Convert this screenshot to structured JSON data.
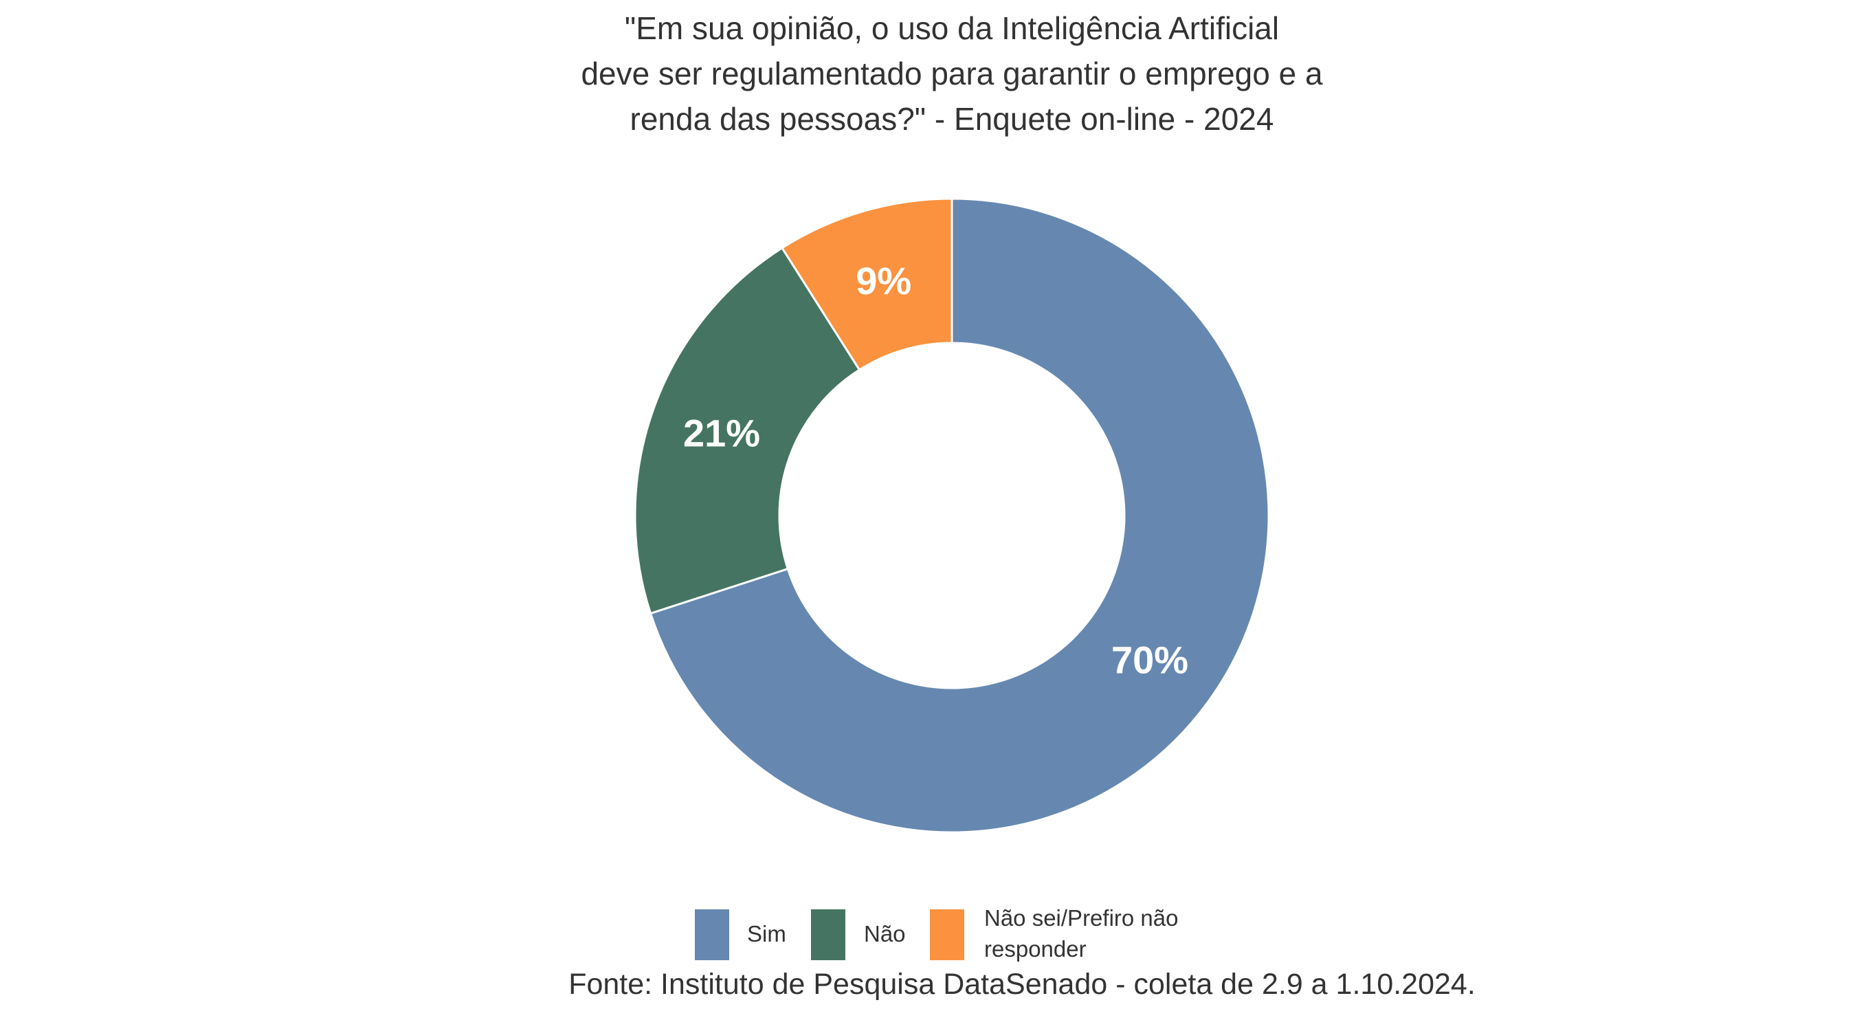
{
  "chart_data": {
    "type": "pie",
    "subtype": "donut",
    "title_lines": [
      "\"Em sua opinião, o uso da Inteligência Artificial",
      "deve ser regulamentado para garantir o emprego e a",
      "renda das pessoas?\" - Enquete on-line - 2024"
    ],
    "categories": [
      "Sim",
      "Não",
      "Não sei/Prefiro não responder"
    ],
    "legend_lines": [
      [
        "Sim"
      ],
      [
        "Não"
      ],
      [
        "Não sei/Prefiro não",
        "responder"
      ]
    ],
    "values": [
      70,
      21,
      9
    ],
    "data_labels": [
      "70%",
      "21%",
      "9%"
    ],
    "colors": [
      "#6688B0",
      "#457562",
      "#FA923F"
    ],
    "legend_position": "bottom",
    "source": "Fonte: Instituto de Pesquisa DataSenado - coleta de 2.9 a 1.10.2024."
  }
}
